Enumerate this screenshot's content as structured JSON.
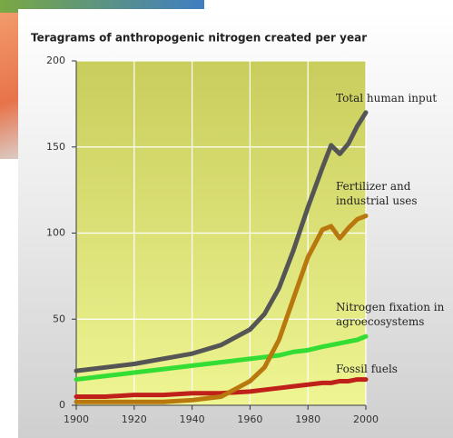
{
  "chart_data": {
    "type": "line",
    "title": "Teragrams of anthropogenic nitrogen created per year",
    "x": [
      1900,
      1910,
      1920,
      1930,
      1940,
      1950,
      1960,
      1965,
      1970,
      1975,
      1980,
      1985,
      1988,
      1991,
      1994,
      1997,
      2000
    ],
    "series": [
      {
        "name": "Fossil fuels",
        "color": "#c0201a",
        "values": [
          5,
          5,
          6,
          6,
          7,
          7,
          8,
          9,
          10,
          11,
          12,
          13,
          13,
          14,
          14,
          15,
          15
        ]
      },
      {
        "name": "Nitrogen fixation in agroecosystems",
        "color": "#33dd33",
        "values": [
          15,
          17,
          19,
          21,
          23,
          25,
          27,
          28,
          29,
          31,
          32,
          34,
          35,
          36,
          37,
          38,
          40
        ]
      },
      {
        "name": "Fertilizer and industrial uses",
        "color": "#b8780e",
        "values": [
          2,
          2,
          2,
          2,
          3,
          5,
          14,
          22,
          38,
          62,
          86,
          102,
          104,
          97,
          103,
          108,
          110
        ]
      },
      {
        "name": "Total human input",
        "color": "#555555",
        "values": [
          20,
          22,
          24,
          27,
          30,
          35,
          44,
          53,
          68,
          90,
          115,
          138,
          151,
          146,
          152,
          162,
          170
        ]
      }
    ],
    "xlim": [
      1900,
      2000
    ],
    "xticks": [
      1900,
      1920,
      1940,
      1960,
      1980,
      2000
    ],
    "ylim": [
      0,
      200
    ],
    "yticks": [
      0,
      50,
      100,
      150,
      200
    ],
    "grid": true
  }
}
